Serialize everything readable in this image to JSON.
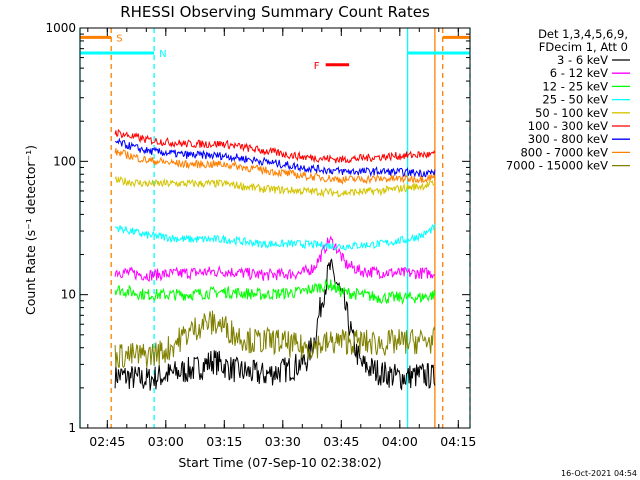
{
  "chart_data": {
    "type": "line",
    "title": "RHESSI Observing Summary Count Rates",
    "xlabel": "Start Time (07-Sep-10 02:38:02)",
    "ylabel": "Count Rate (s⁻¹ detector⁻¹)",
    "y_scale": "log",
    "ylim": [
      1,
      1000
    ],
    "xlim": [
      "02:38",
      "04:18"
    ],
    "x_ticks": [
      "02:45",
      "03:00",
      "03:15",
      "03:30",
      "03:45",
      "04:00",
      "04:15"
    ],
    "y_ticks": [
      "1",
      "10",
      "100",
      "1000"
    ],
    "legend_header": [
      "Det 1,3,4,5,6,9,",
      "FDecim 1, Att 0"
    ],
    "legend_position": "right",
    "series": [
      {
        "name": "3 - 6 keV",
        "color": "#000000",
        "points": [
          [
            "02:47",
            2.5
          ],
          [
            "02:55",
            2.3
          ],
          [
            "03:00",
            2.5
          ],
          [
            "03:08",
            2.8
          ],
          [
            "03:12",
            3.2
          ],
          [
            "03:18",
            2.7
          ],
          [
            "03:25",
            2.5
          ],
          [
            "03:32",
            2.8
          ],
          [
            "03:36",
            3.2
          ],
          [
            "03:38",
            4.5
          ],
          [
            "03:40",
            9
          ],
          [
            "03:42",
            16
          ],
          [
            "03:44",
            12
          ],
          [
            "03:46",
            8
          ],
          [
            "03:48",
            4.5
          ],
          [
            "03:50",
            3
          ],
          [
            "03:55",
            2.6
          ],
          [
            "04:00",
            2.4
          ],
          [
            "04:06",
            2.5
          ],
          [
            "04:09",
            2.4
          ]
        ]
      },
      {
        "name": "6 - 12 keV",
        "color": "#ff00ff",
        "points": [
          [
            "02:47",
            15
          ],
          [
            "02:55",
            14
          ],
          [
            "03:05",
            14.5
          ],
          [
            "03:15",
            15
          ],
          [
            "03:25",
            14
          ],
          [
            "03:35",
            14.5
          ],
          [
            "03:38",
            16
          ],
          [
            "03:40",
            20
          ],
          [
            "03:42",
            26
          ],
          [
            "03:44",
            22
          ],
          [
            "03:46",
            17
          ],
          [
            "03:50",
            15
          ],
          [
            "04:00",
            14.5
          ],
          [
            "04:09",
            14.5
          ]
        ]
      },
      {
        "name": "12 - 25 keV",
        "color": "#00ff00",
        "points": [
          [
            "02:47",
            11
          ],
          [
            "02:55",
            10
          ],
          [
            "03:05",
            10
          ],
          [
            "03:15",
            10.5
          ],
          [
            "03:25",
            10
          ],
          [
            "03:35",
            10.5
          ],
          [
            "03:42",
            12
          ],
          [
            "03:45",
            10.5
          ],
          [
            "03:55",
            9.5
          ],
          [
            "04:05",
            9.5
          ],
          [
            "04:09",
            10
          ]
        ]
      },
      {
        "name": "25 - 50 keV",
        "color": "#00ffff",
        "points": [
          [
            "02:47",
            32
          ],
          [
            "02:55",
            28
          ],
          [
            "03:05",
            26
          ],
          [
            "03:15",
            26
          ],
          [
            "03:25",
            24
          ],
          [
            "03:35",
            24
          ],
          [
            "03:45",
            23
          ],
          [
            "03:55",
            24
          ],
          [
            "04:02",
            26
          ],
          [
            "04:06",
            28
          ],
          [
            "04:09",
            32
          ]
        ]
      },
      {
        "name": "50 - 100 keV",
        "color": "#d4c400",
        "points": [
          [
            "02:47",
            72
          ],
          [
            "02:55",
            68
          ],
          [
            "03:05",
            68
          ],
          [
            "03:15",
            68
          ],
          [
            "03:25",
            62
          ],
          [
            "03:35",
            60
          ],
          [
            "03:45",
            58
          ],
          [
            "03:55",
            60
          ],
          [
            "04:05",
            65
          ],
          [
            "04:09",
            68
          ]
        ]
      },
      {
        "name": "100 - 300 keV",
        "color": "#ff0000",
        "points": [
          [
            "02:47",
            165
          ],
          [
            "02:55",
            145
          ],
          [
            "03:05",
            135
          ],
          [
            "03:15",
            135
          ],
          [
            "03:25",
            120
          ],
          [
            "03:35",
            108
          ],
          [
            "03:45",
            103
          ],
          [
            "03:55",
            108
          ],
          [
            "04:05",
            112
          ],
          [
            "04:09",
            112
          ]
        ]
      },
      {
        "name": "300 - 800 keV",
        "color": "#0000ff",
        "points": [
          [
            "02:47",
            140
          ],
          [
            "02:55",
            120
          ],
          [
            "03:05",
            112
          ],
          [
            "03:15",
            110
          ],
          [
            "03:25",
            100
          ],
          [
            "03:35",
            90
          ],
          [
            "03:45",
            84
          ],
          [
            "03:55",
            84
          ],
          [
            "04:05",
            82
          ],
          [
            "04:09",
            82
          ]
        ]
      },
      {
        "name": "800 - 7000 keV",
        "color": "#ff8000",
        "points": [
          [
            "02:47",
            118
          ],
          [
            "02:55",
            102
          ],
          [
            "03:05",
            95
          ],
          [
            "03:15",
            95
          ],
          [
            "03:25",
            86
          ],
          [
            "03:35",
            78
          ],
          [
            "03:45",
            73
          ],
          [
            "03:55",
            74
          ],
          [
            "04:05",
            74
          ],
          [
            "04:09",
            76
          ]
        ]
      },
      {
        "name": "7000 - 15000 keV",
        "color": "#808000",
        "points": [
          [
            "02:47",
            3.5
          ],
          [
            "02:55",
            3.5
          ],
          [
            "03:00",
            3.8
          ],
          [
            "03:05",
            5
          ],
          [
            "03:10",
            6.2
          ],
          [
            "03:14",
            6
          ],
          [
            "03:18",
            5
          ],
          [
            "03:22",
            4.5
          ],
          [
            "03:28",
            4.5
          ],
          [
            "03:35",
            4
          ],
          [
            "03:45",
            4.5
          ],
          [
            "03:55",
            4.3
          ],
          [
            "04:05",
            4.5
          ],
          [
            "04:09",
            4.5
          ]
        ]
      }
    ],
    "markers": [
      {
        "label": "S",
        "color": "#ff8000",
        "line_style": "dashed",
        "x": "02:46"
      },
      {
        "label": "N",
        "color": "#00ffff",
        "line_style": "dashed",
        "x": "02:57"
      }
    ],
    "vertical_lines": [
      {
        "color": "#00ffff",
        "line_style": "solid",
        "x": "02:38"
      },
      {
        "color": "#00ffff",
        "line_style": "solid",
        "x": "04:02"
      },
      {
        "color": "#ff8000",
        "line_style": "solid",
        "x": "04:09"
      },
      {
        "color": "#ff8000",
        "line_style": "dashed",
        "x": "04:11"
      },
      {
        "color": "#00ffff",
        "line_style": "dashed",
        "x": "04:18"
      }
    ],
    "flag_segments": [
      {
        "label": "S",
        "color": "#ff8000",
        "y": 850,
        "ranges": [
          [
            "02:38",
            "02:46"
          ],
          [
            "04:11",
            "04:18"
          ]
        ]
      },
      {
        "label": "N",
        "color": "#00ffff",
        "y": 650,
        "ranges": [
          [
            "02:38",
            "02:57"
          ],
          [
            "04:02",
            "04:18"
          ]
        ]
      },
      {
        "label": "F",
        "color": "#ff0000",
        "y": 530,
        "ranges": [
          [
            "03:41",
            "03:47"
          ]
        ]
      }
    ]
  },
  "footer_date": "16-Oct-2021 04:54"
}
